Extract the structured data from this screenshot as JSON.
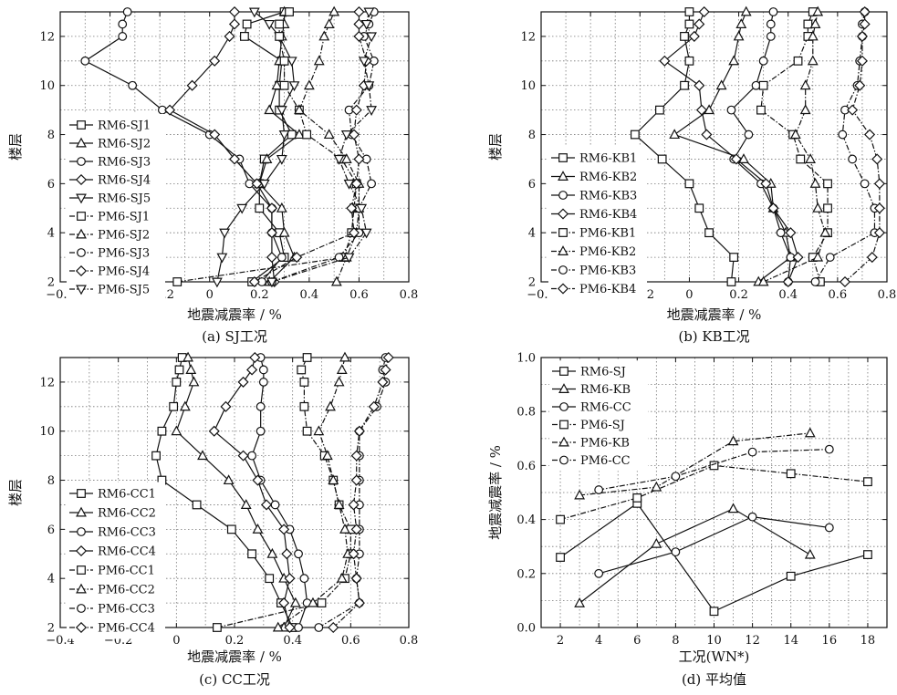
{
  "chart_data": [
    {
      "id": "a",
      "type": "line",
      "caption": "(a) SJ工况",
      "xlabel": "地震减震率 / %",
      "ylabel": "楼层",
      "xlim": [
        -0.6,
        0.8
      ],
      "ylim": [
        2,
        13
      ],
      "xticks": [
        "−0.6",
        "−0.4",
        "−0.2",
        "0",
        "0.2",
        "0.4",
        "0.6",
        "0.8"
      ],
      "yticks": [
        "2",
        "4",
        "6",
        "8",
        "10",
        "12"
      ],
      "grid": true,
      "legend": "left",
      "series": [
        {
          "name": "RM6-SJ1",
          "marker": "square",
          "dash": "solid",
          "x": [
            0.17,
            0.3,
            0.28,
            0.2,
            0.2,
            0.22,
            0.33,
            0.28,
            0.28,
            0.29,
            0.14,
            0.15,
            0.3
          ],
          "y": [
            2,
            3,
            4,
            5,
            6,
            7,
            8,
            9,
            10,
            11,
            12,
            12.5,
            13
          ]
        },
        {
          "name": "RM6-SJ2",
          "marker": "triangle",
          "dash": "solid",
          "x": [
            0.24,
            0.34,
            0.3,
            0.29,
            0.2,
            0.23,
            0.36,
            0.24,
            0.27,
            0.28,
            0.29,
            0.3,
            0.3
          ],
          "y": [
            2,
            3,
            4,
            5,
            6,
            7,
            8,
            9,
            10,
            11,
            12,
            12.5,
            13
          ]
        },
        {
          "name": "RM6-SJ3",
          "marker": "circle",
          "dash": "solid",
          "x": [
            0.21,
            0.29,
            0.25,
            0.25,
            0.16,
            0.12,
            0.0,
            -0.19,
            -0.31,
            -0.5,
            -0.35,
            -0.35,
            -0.33
          ],
          "y": [
            2,
            3,
            4,
            5,
            6,
            7,
            8,
            9,
            10,
            11,
            12,
            12.5,
            13
          ]
        },
        {
          "name": "RM6-SJ4",
          "marker": "diamond",
          "dash": "solid",
          "x": [
            0.26,
            0.25,
            0.25,
            0.25,
            0.19,
            0.1,
            0.02,
            -0.16,
            -0.07,
            0.02,
            0.08,
            0.1,
            0.1
          ],
          "y": [
            2,
            3,
            4,
            5,
            6,
            7,
            8,
            9,
            10,
            11,
            12,
            12.5,
            13
          ]
        },
        {
          "name": "RM6-SJ5",
          "marker": "tri-down",
          "dash": "solid",
          "x": [
            0.03,
            0.05,
            0.06,
            0.13,
            0.22,
            0.29,
            0.3,
            0.29,
            0.34,
            0.33,
            0.28,
            0.24,
            0.18
          ],
          "y": [
            2,
            3,
            4,
            5,
            6,
            7,
            8,
            9,
            10,
            11,
            12,
            12.5,
            13
          ]
        },
        {
          "name": "PM6-SJ1",
          "marker": "square",
          "dash": "dashdot",
          "x": [
            -0.13,
            0.54,
            0.57,
            0.58,
            0.59,
            0.53,
            0.39,
            0.36,
            0.3,
            0.3,
            0.28,
            0.28,
            0.32
          ],
          "y": [
            2,
            3,
            4,
            5,
            6,
            7,
            8,
            9,
            10,
            11,
            12,
            12.5,
            13
          ]
        },
        {
          "name": "PM6-SJ2",
          "marker": "triangle",
          "dash": "dashdot",
          "x": [
            0.51,
            0.55,
            0.59,
            0.6,
            0.6,
            0.55,
            0.48,
            0.36,
            0.4,
            0.44,
            0.46,
            0.48,
            0.5
          ],
          "y": [
            2,
            3,
            4,
            5,
            6,
            7,
            8,
            9,
            10,
            11,
            12,
            12.5,
            13
          ]
        },
        {
          "name": "PM6-SJ3",
          "marker": "circle",
          "dash": "dashdot",
          "x": [
            0.25,
            0.52,
            0.6,
            0.6,
            0.65,
            0.63,
            0.57,
            0.56,
            0.64,
            0.66,
            0.62,
            0.64,
            0.66
          ],
          "y": [
            2,
            3,
            4,
            5,
            6,
            7,
            8,
            9,
            10,
            11,
            12,
            12.5,
            13
          ]
        },
        {
          "name": "PM6-SJ4",
          "marker": "diamond",
          "dash": "dashdot",
          "x": [
            0.18,
            0.35,
            0.58,
            0.57,
            0.59,
            0.6,
            0.58,
            0.59,
            0.62,
            0.63,
            0.6,
            0.6,
            0.6
          ],
          "y": [
            2,
            3,
            4,
            5,
            6,
            7,
            8,
            9,
            10,
            11,
            12,
            12.5,
            13
          ]
        },
        {
          "name": "PM6-SJ5",
          "marker": "tri-down",
          "dash": "dashdot",
          "x": [
            0.25,
            0.56,
            0.63,
            0.61,
            0.56,
            0.52,
            0.55,
            0.65,
            0.64,
            0.62,
            0.65,
            0.63,
            0.64
          ],
          "y": [
            2,
            3,
            4,
            5,
            6,
            7,
            8,
            9,
            10,
            11,
            12,
            12.5,
            13
          ]
        }
      ]
    },
    {
      "id": "b",
      "type": "line",
      "caption": "(b) KB工况",
      "xlabel": "地震减震率 / %",
      "ylabel": "楼层",
      "xlim": [
        -0.6,
        0.8
      ],
      "ylim": [
        2,
        13
      ],
      "xticks": [
        "−0.6",
        "−0.4",
        "−0.2",
        "0",
        "0.2",
        "0.4",
        "0.6",
        "0.8"
      ],
      "yticks": [
        "2",
        "4",
        "6",
        "8",
        "10",
        "12"
      ],
      "grid": true,
      "legend": "left",
      "series": [
        {
          "name": "RM6-KB1",
          "marker": "square",
          "dash": "solid",
          "x": [
            0.17,
            0.18,
            0.08,
            0.04,
            0.0,
            -0.11,
            -0.22,
            -0.12,
            -0.02,
            0.0,
            -0.02,
            0.0,
            0.0
          ],
          "y": [
            2,
            3,
            4,
            5,
            6,
            7,
            8,
            9,
            10,
            11,
            12,
            12.5,
            13
          ]
        },
        {
          "name": "RM6-KB2",
          "marker": "triangle",
          "dash": "solid",
          "x": [
            0.28,
            0.41,
            0.39,
            0.34,
            0.33,
            0.22,
            -0.06,
            0.08,
            0.13,
            0.18,
            0.2,
            0.21,
            0.23
          ],
          "y": [
            2,
            3,
            4,
            5,
            6,
            7,
            8,
            9,
            10,
            11,
            12,
            12.5,
            13
          ]
        },
        {
          "name": "RM6-KB3",
          "marker": "circle",
          "dash": "solid",
          "x": [
            0.4,
            0.41,
            0.37,
            0.34,
            0.29,
            0.18,
            0.24,
            0.17,
            0.27,
            0.3,
            0.33,
            0.33,
            0.34
          ],
          "y": [
            2,
            3,
            4,
            5,
            6,
            7,
            8,
            9,
            10,
            11,
            12,
            12.5,
            13
          ]
        },
        {
          "name": "RM6-KB4",
          "marker": "diamond",
          "dash": "solid",
          "x": [
            0.4,
            0.44,
            0.41,
            0.34,
            0.31,
            0.19,
            0.07,
            0.05,
            0.04,
            -0.1,
            0.02,
            0.04,
            0.06
          ],
          "y": [
            2,
            3,
            4,
            5,
            6,
            7,
            8,
            9,
            10,
            11,
            12,
            12.5,
            13
          ]
        },
        {
          "name": "PM6-KB1",
          "marker": "square",
          "dash": "dashdot",
          "x": [
            0.53,
            0.5,
            0.56,
            0.56,
            0.56,
            0.45,
            0.42,
            0.29,
            0.3,
            0.44,
            0.48,
            0.48,
            0.5
          ],
          "y": [
            2,
            3,
            4,
            5,
            6,
            7,
            8,
            9,
            10,
            11,
            12,
            12.5,
            13
          ]
        },
        {
          "name": "PM6-KB2",
          "marker": "triangle",
          "dash": "dashdot",
          "x": [
            0.3,
            0.52,
            0.55,
            0.52,
            0.51,
            0.49,
            0.43,
            0.47,
            0.47,
            0.5,
            0.5,
            0.51,
            0.52
          ],
          "y": [
            2,
            3,
            4,
            5,
            6,
            7,
            8,
            9,
            10,
            11,
            12,
            12.5,
            13
          ]
        },
        {
          "name": "PM6-KB3",
          "marker": "circle",
          "dash": "dashdot",
          "x": [
            0.51,
            0.57,
            0.75,
            0.75,
            0.71,
            0.66,
            0.62,
            0.63,
            0.68,
            0.69,
            0.7,
            0.7,
            0.71
          ],
          "y": [
            2,
            3,
            4,
            5,
            6,
            7,
            8,
            9,
            10,
            11,
            12,
            12.5,
            13
          ]
        },
        {
          "name": "PM6-KB4",
          "marker": "diamond",
          "dash": "dashdot",
          "x": [
            0.63,
            0.74,
            0.77,
            0.77,
            0.77,
            0.76,
            0.73,
            0.66,
            0.69,
            0.7,
            0.7,
            0.71,
            0.71
          ],
          "y": [
            2,
            3,
            4,
            5,
            6,
            7,
            8,
            9,
            10,
            11,
            12,
            12.5,
            13
          ]
        }
      ]
    },
    {
      "id": "c",
      "type": "line",
      "caption": "(c) CC工况",
      "xlabel": "地震减震率 / %",
      "ylabel": "楼层",
      "xlim": [
        -0.4,
        0.8
      ],
      "ylim": [
        2,
        13
      ],
      "xticks": [
        "−0.4",
        "−0.2",
        "0",
        "0.2",
        "0.4",
        "0.6",
        "0.8"
      ],
      "yticks": [
        "2",
        "4",
        "6",
        "8",
        "10",
        "12"
      ],
      "grid": true,
      "legend": "left",
      "series": [
        {
          "name": "RM6-CC1",
          "marker": "square",
          "dash": "solid",
          "x": [
            0.4,
            0.36,
            0.32,
            0.26,
            0.19,
            0.07,
            -0.05,
            -0.07,
            -0.05,
            -0.01,
            0.0,
            0.01,
            0.02
          ],
          "y": [
            2,
            3,
            4,
            5,
            6,
            7,
            8,
            9,
            10,
            11,
            12,
            12.5,
            13
          ]
        },
        {
          "name": "RM6-CC2",
          "marker": "triangle",
          "dash": "solid",
          "x": [
            0.37,
            0.41,
            0.37,
            0.33,
            0.28,
            0.24,
            0.18,
            0.09,
            0.0,
            0.03,
            0.06,
            0.05,
            0.04
          ],
          "y": [
            2,
            3,
            4,
            5,
            6,
            7,
            8,
            9,
            10,
            11,
            12,
            12.5,
            13
          ]
        },
        {
          "name": "RM6-CC3",
          "marker": "circle",
          "dash": "solid",
          "x": [
            0.42,
            0.45,
            0.44,
            0.42,
            0.39,
            0.34,
            0.29,
            0.26,
            0.29,
            0.29,
            0.3,
            0.3,
            0.29
          ],
          "y": [
            2,
            3,
            4,
            5,
            6,
            7,
            8,
            9,
            10,
            11,
            12,
            12.5,
            13
          ]
        },
        {
          "name": "RM6-CC4",
          "marker": "diamond",
          "dash": "solid",
          "x": [
            0.39,
            0.37,
            0.39,
            0.38,
            0.37,
            0.31,
            0.28,
            0.23,
            0.13,
            0.17,
            0.23,
            0.26,
            0.27
          ],
          "y": [
            2,
            3,
            4,
            5,
            6,
            7,
            8,
            9,
            10,
            11,
            12,
            12.5,
            13
          ]
        },
        {
          "name": "PM6-CC1",
          "marker": "square",
          "dash": "dashdot",
          "x": [
            0.14,
            0.5,
            0.58,
            0.6,
            0.6,
            0.56,
            0.54,
            0.51,
            0.45,
            0.44,
            0.44,
            0.43,
            0.45
          ],
          "y": [
            2,
            3,
            4,
            5,
            6,
            7,
            8,
            9,
            10,
            11,
            12,
            12.5,
            13
          ]
        },
        {
          "name": "PM6-CC2",
          "marker": "triangle",
          "dash": "dashdot",
          "x": [
            0.35,
            0.47,
            0.57,
            0.59,
            0.58,
            0.56,
            0.54,
            0.52,
            0.49,
            0.53,
            0.56,
            0.57,
            0.58
          ],
          "y": [
            2,
            3,
            4,
            5,
            6,
            7,
            8,
            9,
            10,
            11,
            12,
            12.5,
            13
          ]
        },
        {
          "name": "PM6-CC3",
          "marker": "circle",
          "dash": "dashdot",
          "x": [
            0.49,
            0.63,
            0.62,
            0.63,
            0.63,
            0.63,
            0.63,
            0.63,
            0.63,
            0.69,
            0.72,
            0.71,
            0.72
          ],
          "y": [
            2,
            3,
            4,
            5,
            6,
            7,
            8,
            9,
            10,
            11,
            12,
            12.5,
            13
          ]
        },
        {
          "name": "PM6-CC4",
          "marker": "diamond",
          "dash": "dashdot",
          "x": [
            0.54,
            0.63,
            0.62,
            0.61,
            0.62,
            0.61,
            0.62,
            0.62,
            0.63,
            0.68,
            0.71,
            0.72,
            0.73
          ],
          "y": [
            2,
            3,
            4,
            5,
            6,
            7,
            8,
            9,
            10,
            11,
            12,
            12.5,
            13
          ]
        }
      ]
    },
    {
      "id": "d",
      "type": "line",
      "caption": "(d) 平均值",
      "xlabel": "工况(WN*)",
      "ylabel": "地震减震率 / %",
      "xlim": [
        1,
        19
      ],
      "ylim": [
        0,
        1.0
      ],
      "xticks": [
        "2",
        "4",
        "6",
        "8",
        "10",
        "12",
        "14",
        "16",
        "18"
      ],
      "yticks": [
        "0.0",
        "0.2",
        "0.4",
        "0.6",
        "0.8",
        "1.0"
      ],
      "grid": true,
      "legend": "top-left",
      "series": [
        {
          "name": "RM6-SJ",
          "marker": "square",
          "dash": "solid",
          "x": [
            2,
            6,
            10,
            14,
            18
          ],
          "y": [
            0.26,
            0.46,
            0.06,
            0.19,
            0.27
          ]
        },
        {
          "name": "RM6-KB",
          "marker": "triangle",
          "dash": "solid",
          "x": [
            3,
            7,
            11,
            15
          ],
          "y": [
            0.09,
            0.31,
            0.44,
            0.27
          ]
        },
        {
          "name": "RM6-CC",
          "marker": "circle",
          "dash": "solid",
          "x": [
            4,
            8,
            12,
            16
          ],
          "y": [
            0.2,
            0.28,
            0.41,
            0.37
          ]
        },
        {
          "name": "PM6-SJ",
          "marker": "square",
          "dash": "dashdot",
          "x": [
            2,
            6,
            10,
            14,
            18
          ],
          "y": [
            0.4,
            0.48,
            0.6,
            0.57,
            0.54
          ]
        },
        {
          "name": "PM6-KB",
          "marker": "triangle",
          "dash": "dashdot",
          "x": [
            3,
            7,
            11,
            15
          ],
          "y": [
            0.49,
            0.52,
            0.69,
            0.72
          ]
        },
        {
          "name": "PM6-CC",
          "marker": "circle",
          "dash": "dashdot",
          "x": [
            4,
            8,
            12,
            16
          ],
          "y": [
            0.51,
            0.56,
            0.65,
            0.66
          ]
        }
      ]
    }
  ]
}
